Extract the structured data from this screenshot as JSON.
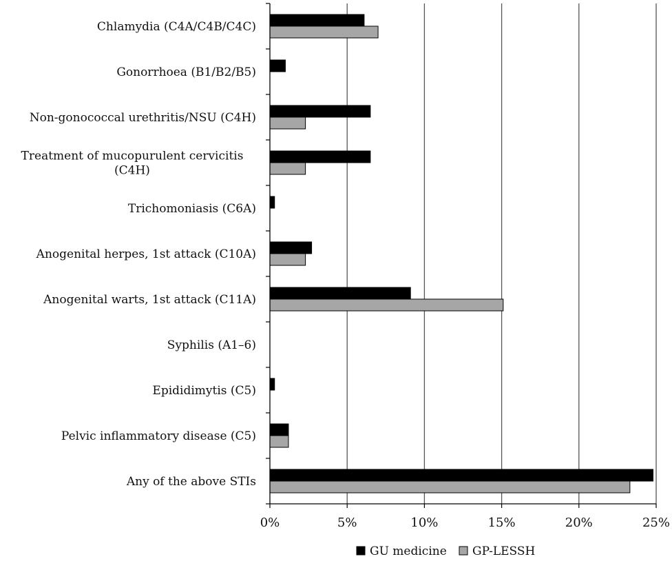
{
  "chart_data": {
    "type": "bar",
    "orientation": "horizontal",
    "categories": [
      [
        "Chlamydia (C4A/C4B/C4C)"
      ],
      [
        "Gonorrhoea (B1/B2/B5)"
      ],
      [
        "Non-gonococcal urethritis/NSU  (C4H)"
      ],
      [
        "Treatment of mucopurulent cervicitis",
        "(C4H)"
      ],
      [
        "Trichomoniasis (C6A)"
      ],
      [
        "Anogenital herpes, 1st attack (C10A)"
      ],
      [
        "Anogenital warts, 1st attack (C11A)"
      ],
      [
        "Syphilis (A1–6)"
      ],
      [
        "Epididimytis  (C5)"
      ],
      [
        "Pelvic inflammatory disease  (C5)"
      ],
      [
        "Any of the above STIs"
      ]
    ],
    "series": [
      {
        "name": "GU medicine",
        "color": "#000000",
        "values": [
          6.1,
          1.0,
          6.5,
          6.5,
          0.3,
          2.7,
          9.1,
          0.0,
          0.3,
          1.2,
          24.8
        ]
      },
      {
        "name": "GP-LESSH",
        "color": "#a6a6a6",
        "values": [
          7.0,
          0.0,
          2.3,
          2.3,
          0.0,
          2.3,
          15.1,
          0.0,
          0.0,
          1.2,
          23.3
        ]
      }
    ],
    "xticks": [
      0,
      5,
      10,
      15,
      20,
      25
    ],
    "xtick_labels": [
      "0%",
      "5%",
      "10%",
      "15%",
      "20%",
      "25%"
    ],
    "xlim": [
      0,
      25
    ],
    "grid": true,
    "legend": "bottom"
  }
}
